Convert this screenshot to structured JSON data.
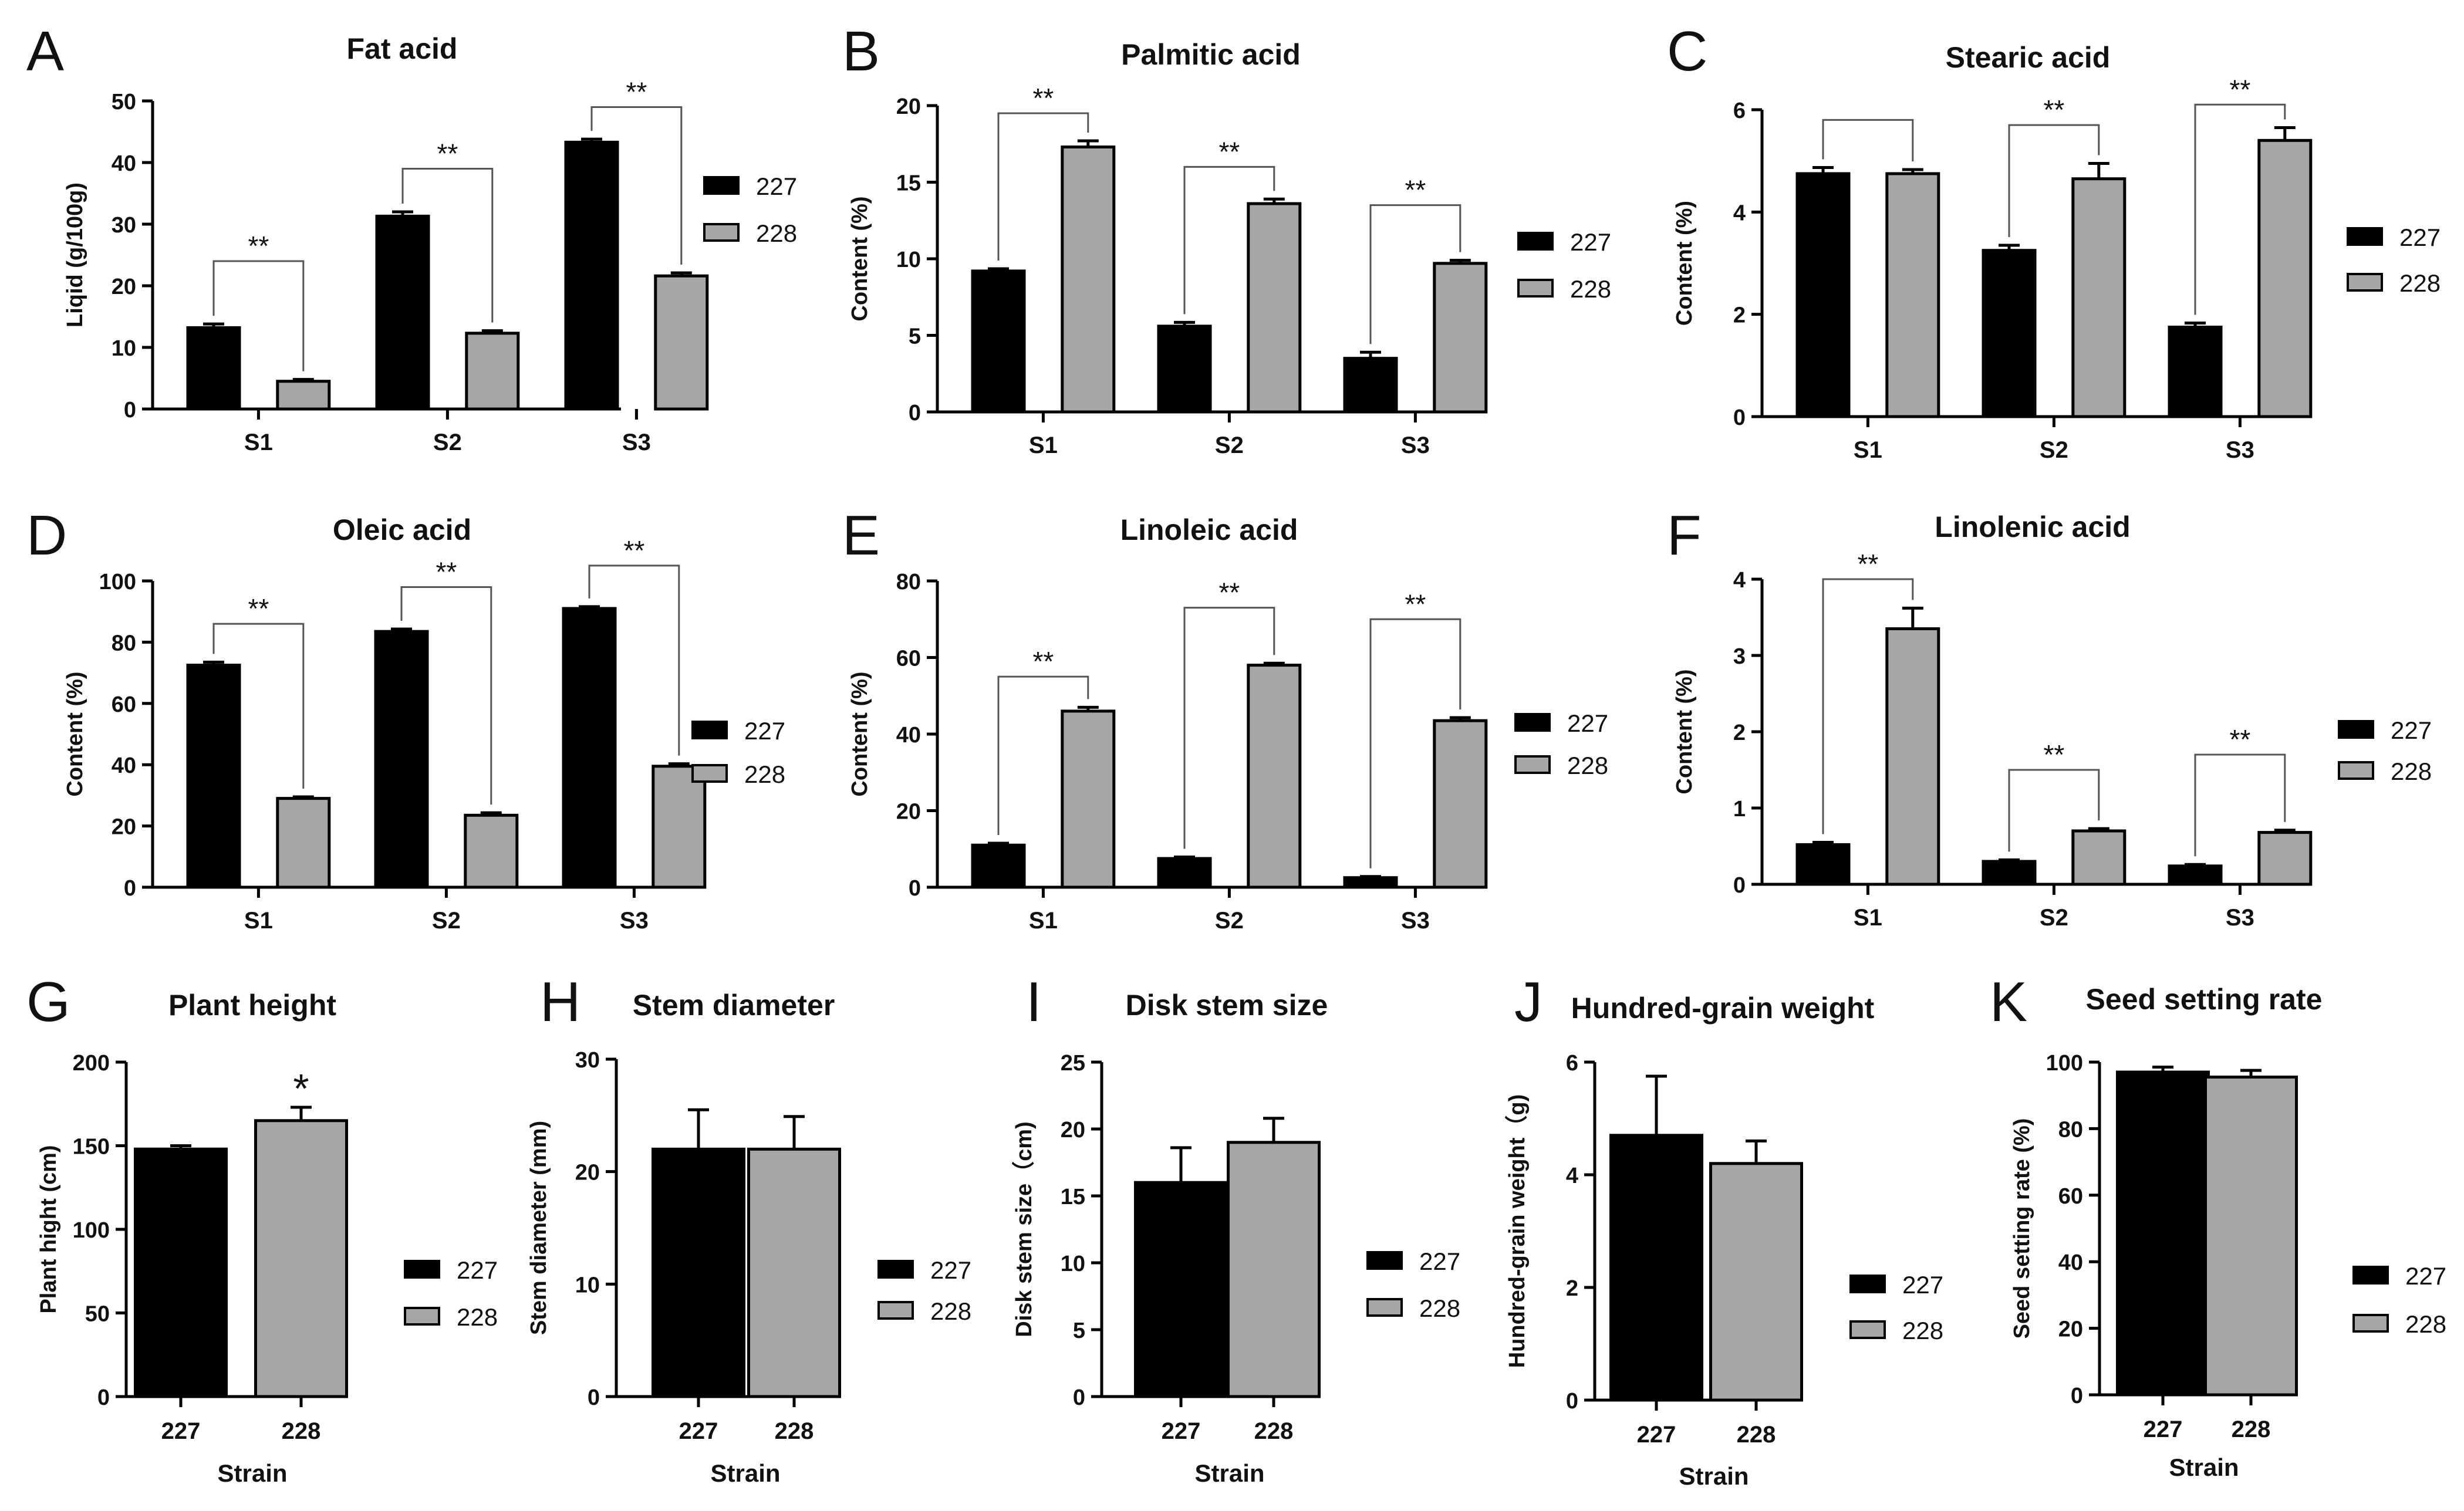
{
  "colors": {
    "s227": "#000000",
    "s228": "#a6a6a6",
    "axis": "#000000"
  },
  "legend_labels": [
    "227",
    "228"
  ],
  "chart_data": [
    {
      "letter": "A",
      "type": "bar",
      "title": "Fat acid",
      "ylabel": "Liqid (g/100g)",
      "xlabel": "",
      "ylim": [
        0,
        50
      ],
      "yticks": [
        0,
        10,
        20,
        30,
        40,
        50
      ],
      "categories": [
        "S1",
        "S2",
        "S3"
      ],
      "series": [
        {
          "name": "227",
          "values": [
            13.2,
            31.3,
            43.3
          ],
          "errors": [
            0.6,
            0.7,
            0.5
          ]
        },
        {
          "name": "228",
          "values": [
            4.5,
            12.3,
            21.6
          ],
          "errors": [
            0.3,
            0.4,
            0.5
          ]
        }
      ],
      "brackets": [
        {
          "group": 0,
          "level": 24,
          "label": "**"
        },
        {
          "group": 1,
          "level": 39,
          "label": "**"
        },
        {
          "group": 2,
          "level": 49,
          "label": "**"
        }
      ]
    },
    {
      "letter": "B",
      "type": "bar",
      "title": "Palmitic acid",
      "ylabel": "Content (%)",
      "xlabel": "",
      "ylim": [
        0,
        20
      ],
      "yticks": [
        0,
        5,
        10,
        15,
        20
      ],
      "categories": [
        "S1",
        "S2",
        "S3"
      ],
      "series": [
        {
          "name": "227",
          "values": [
            9.2,
            5.6,
            3.5
          ],
          "errors": [
            0.15,
            0.25,
            0.4
          ]
        },
        {
          "name": "228",
          "values": [
            17.3,
            13.6,
            9.7
          ],
          "errors": [
            0.4,
            0.3,
            0.2
          ]
        }
      ],
      "brackets": [
        {
          "group": 0,
          "level": 19.5,
          "label": "**"
        },
        {
          "group": 1,
          "level": 16.0,
          "label": "**"
        },
        {
          "group": 2,
          "level": 13.5,
          "label": "**"
        }
      ]
    },
    {
      "letter": "C",
      "type": "bar",
      "title": "Stearic acid",
      "ylabel": "Content (%)",
      "xlabel": "",
      "ylim": [
        0,
        6
      ],
      "yticks": [
        0,
        2,
        4,
        6
      ],
      "categories": [
        "S1",
        "S2",
        "S3"
      ],
      "series": [
        {
          "name": "227",
          "values": [
            4.75,
            3.25,
            1.75
          ],
          "errors": [
            0.12,
            0.1,
            0.08
          ]
        },
        {
          "name": "228",
          "values": [
            4.75,
            4.65,
            5.4
          ],
          "errors": [
            0.08,
            0.3,
            0.25
          ]
        }
      ],
      "brackets": [
        {
          "group": 0,
          "level": 5.8,
          "label": ""
        },
        {
          "group": 1,
          "level": 5.7,
          "label": "**"
        },
        {
          "group": 2,
          "level": 6.1,
          "label": "**"
        }
      ]
    },
    {
      "letter": "D",
      "type": "bar",
      "title": "Oleic acid",
      "ylabel": "Content (%)",
      "xlabel": "",
      "ylim": [
        0,
        100
      ],
      "yticks": [
        0,
        20,
        40,
        60,
        80,
        100
      ],
      "categories": [
        "S1",
        "S2",
        "S3"
      ],
      "series": [
        {
          "name": "227",
          "values": [
            72.5,
            83.5,
            91.0
          ],
          "errors": [
            1.0,
            0.8,
            0.6
          ]
        },
        {
          "name": "228",
          "values": [
            29.0,
            23.5,
            39.5
          ],
          "errors": [
            0.5,
            0.8,
            0.8
          ]
        }
      ],
      "brackets": [
        {
          "group": 0,
          "level": 86,
          "label": "**"
        },
        {
          "group": 1,
          "level": 98,
          "label": "**"
        },
        {
          "group": 2,
          "level": 105,
          "label": "**"
        }
      ]
    },
    {
      "letter": "E",
      "type": "bar",
      "title": "Linoleic acid",
      "ylabel": "Content (%)",
      "xlabel": "",
      "ylim": [
        0,
        80
      ],
      "yticks": [
        0,
        20,
        40,
        60,
        80
      ],
      "categories": [
        "S1",
        "S2",
        "S3"
      ],
      "series": [
        {
          "name": "227",
          "values": [
            11.0,
            7.5,
            2.5
          ],
          "errors": [
            0.5,
            0.4,
            0.3
          ]
        },
        {
          "name": "228",
          "values": [
            46.0,
            58.0,
            43.5
          ],
          "errors": [
            1.0,
            0.5,
            0.8
          ]
        }
      ],
      "brackets": [
        {
          "group": 0,
          "level": 55,
          "label": "**"
        },
        {
          "group": 1,
          "level": 73,
          "label": "**"
        },
        {
          "group": 2,
          "level": 70,
          "label": "**"
        }
      ]
    },
    {
      "letter": "F",
      "type": "bar",
      "title": "Linolenic acid",
      "ylabel": "Content (%)",
      "xlabel": "",
      "ylim": [
        0,
        4
      ],
      "yticks": [
        0,
        1,
        2,
        3,
        4
      ],
      "categories": [
        "S1",
        "S2",
        "S3"
      ],
      "series": [
        {
          "name": "227",
          "values": [
            0.52,
            0.3,
            0.24
          ],
          "errors": [
            0.03,
            0.02,
            0.02
          ]
        },
        {
          "name": "228",
          "values": [
            3.35,
            0.7,
            0.68
          ],
          "errors": [
            0.27,
            0.03,
            0.03
          ]
        }
      ],
      "brackets": [
        {
          "group": 0,
          "level": 4.0,
          "label": "**"
        },
        {
          "group": 1,
          "level": 1.5,
          "label": "**"
        },
        {
          "group": 2,
          "level": 1.7,
          "label": "**"
        }
      ]
    },
    {
      "letter": "G",
      "type": "bar",
      "title": "Plant height",
      "ylabel": "Plant hight (cm)",
      "xlabel": "Strain",
      "ylim": [
        0,
        200
      ],
      "yticks": [
        0,
        50,
        100,
        150,
        200
      ],
      "categories": [
        "227",
        "228"
      ],
      "values": [
        148,
        165
      ],
      "errors": [
        2,
        8
      ],
      "stars": [
        "",
        "*"
      ]
    },
    {
      "letter": "H",
      "type": "bar",
      "title": "Stem diameter",
      "ylabel": "Stem diameter (mm)",
      "xlabel": "Strain",
      "ylim": [
        0,
        30
      ],
      "yticks": [
        0,
        10,
        20,
        30
      ],
      "categories": [
        "227",
        "228"
      ],
      "values": [
        22.0,
        22.0
      ],
      "errors": [
        3.5,
        2.9
      ],
      "stars": [
        "",
        ""
      ]
    },
    {
      "letter": "I",
      "type": "bar",
      "title": "Disk stem size",
      "ylabel": "Disk stem size（cm)",
      "xlabel": "Strain",
      "ylim": [
        0,
        25
      ],
      "yticks": [
        0,
        5,
        10,
        15,
        20,
        25
      ],
      "categories": [
        "227",
        "228"
      ],
      "values": [
        16.0,
        19.0
      ],
      "errors": [
        2.6,
        1.8
      ],
      "stars": [
        "",
        ""
      ]
    },
    {
      "letter": "J",
      "type": "bar",
      "title": "Hundred-grain weight",
      "ylabel": "Hundred-grain weight（g)",
      "xlabel": "Strain",
      "ylim": [
        0,
        6
      ],
      "yticks": [
        0,
        2,
        4,
        6
      ],
      "categories": [
        "227",
        "228"
      ],
      "values": [
        4.7,
        4.2
      ],
      "errors": [
        1.05,
        0.4
      ],
      "stars": [
        "",
        ""
      ]
    },
    {
      "letter": "K",
      "type": "bar",
      "title": "Seed setting rate",
      "ylabel": "Seed setting rate (%)",
      "xlabel": "Strain",
      "ylim": [
        0,
        100
      ],
      "yticks": [
        0,
        20,
        40,
        60,
        80,
        100
      ],
      "categories": [
        "227",
        "228"
      ],
      "values": [
        97.0,
        95.5
      ],
      "errors": [
        1.5,
        2.0
      ],
      "stars": [
        "",
        ""
      ]
    }
  ]
}
